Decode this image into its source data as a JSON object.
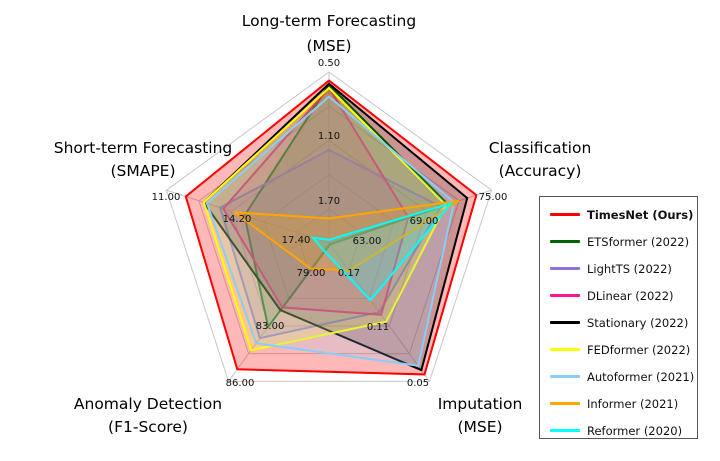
{
  "chart_data": {
    "type": "radar",
    "axes": [
      {
        "title": [
          "Long-term Forecasting",
          "(MSE)"
        ],
        "ticks": [
          "1.70",
          "1.10",
          "0.50"
        ],
        "tick_values": [
          1.7,
          1.1,
          0.5
        ]
      },
      {
        "title": [
          "Classification",
          "(Accuracy)"
        ],
        "ticks": [
          "63.00",
          "69.00",
          "75.00"
        ],
        "tick_values": [
          63.0,
          69.0,
          75.0
        ]
      },
      {
        "title": [
          "Imputation",
          "(MSE)"
        ],
        "ticks": [
          "0.17",
          "0.11",
          "0.05"
        ],
        "tick_values": [
          0.17,
          0.11,
          0.05
        ]
      },
      {
        "title": [
          "Anomaly Detection",
          "(F1-Score)"
        ],
        "ticks": [
          "79.00",
          "83.00",
          "86.00"
        ],
        "tick_values": [
          79.0,
          83.0,
          86.0
        ]
      },
      {
        "title": [
          "Short-term Forecasting",
          "(SMAPE)"
        ],
        "ticks": [
          "17.40",
          "14.20",
          "11.00"
        ],
        "tick_values": [
          17.4,
          14.2,
          11.0
        ]
      }
    ],
    "series": [
      {
        "name": "TimesNet (Ours)",
        "color": "#ff0000",
        "values": [
          0.58,
          73.5,
          0.058,
          85.3,
          12.02
        ]
      },
      {
        "name": "ETSformer (2022)",
        "color": "#006400",
        "values": [
          0.62,
          70.7,
          0.21,
          82.8,
          15.1
        ]
      },
      {
        "name": "LightTS (2022)",
        "color": "#9370db",
        "values": [
          1.23,
          70.0,
          0.13,
          83.5,
          13.82
        ]
      },
      {
        "name": "DLinear (2022)",
        "color": "#ff1493",
        "values": [
          0.65,
          66.8,
          0.127,
          81.3,
          13.99
        ]
      },
      {
        "name": "Stationary (2022)",
        "color": "#000000",
        "values": [
          0.61,
          72.6,
          0.063,
          81.5,
          12.96
        ]
      },
      {
        "name": "FEDformer (2022)",
        "color": "#ffff00",
        "values": [
          0.65,
          70.5,
          0.119,
          84.2,
          12.96
        ]
      },
      {
        "name": "Autoformer (2021)",
        "color": "#87cefa",
        "values": [
          0.73,
          71.3,
          0.068,
          83.8,
          13.13
        ]
      },
      {
        "name": "Informer (2021)",
        "color": "#ffa500",
        "values": [
          1.87,
          71.8,
          0.178,
          78.3,
          14.58
        ]
      },
      {
        "name": "Reformer (2020)",
        "color": "#00ffff",
        "values": [
          2.07,
          71.0,
          0.144,
          76.9,
          18.68
        ]
      }
    ],
    "legend_position": "right",
    "grid": true
  }
}
